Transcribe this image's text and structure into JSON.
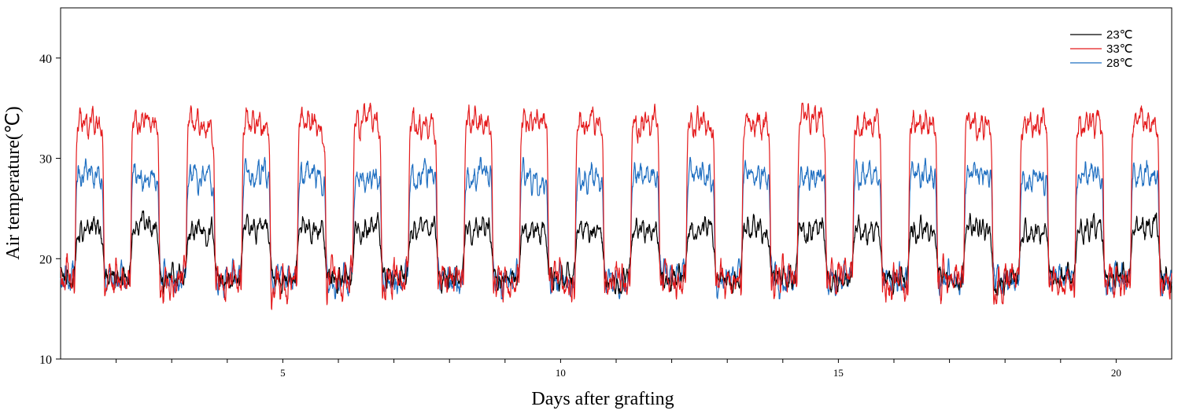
{
  "chart_data": {
    "type": "line",
    "title": "",
    "xlabel": "Days after grafting",
    "ylabel": "Air temperature(℃)",
    "xlim": [
      1,
      21
    ],
    "ylim": [
      10,
      45
    ],
    "yticks": [
      10,
      20,
      30,
      40
    ],
    "xticks_labeled": [
      5,
      10,
      15,
      20
    ],
    "xticks_minor": [
      1,
      2,
      3,
      4,
      5,
      6,
      7,
      8,
      9,
      10,
      11,
      12,
      13,
      14,
      15,
      16,
      17,
      18,
      19,
      20,
      21
    ],
    "x_tick_labels": [
      "5",
      "10",
      "15",
      "20"
    ],
    "y_tick_labels": [
      "10",
      "20",
      "30",
      "40"
    ],
    "grid": false,
    "legend_position": "top-right",
    "day_night_cycle": {
      "light_on_fraction": 0.27,
      "light_off_fraction": 0.77,
      "period_days": 1
    },
    "series": [
      {
        "name": "23℃",
        "color": "#000000",
        "day_mean": 23,
        "day_range": [
          21.5,
          25
        ],
        "night_mean": 18,
        "night_range": [
          16.5,
          19.8
        ]
      },
      {
        "name": "33℃",
        "color": "#e41a1c",
        "day_mean": 33.5,
        "day_range": [
          31.5,
          35.5
        ],
        "night_mean": 18,
        "night_range": [
          15,
          20
        ]
      },
      {
        "name": "28℃",
        "color": "#1f6fc1",
        "day_mean": 28.2,
        "day_range": [
          26.5,
          30.3
        ],
        "night_mean": 18,
        "night_range": [
          15.8,
          19.8
        ]
      }
    ]
  }
}
